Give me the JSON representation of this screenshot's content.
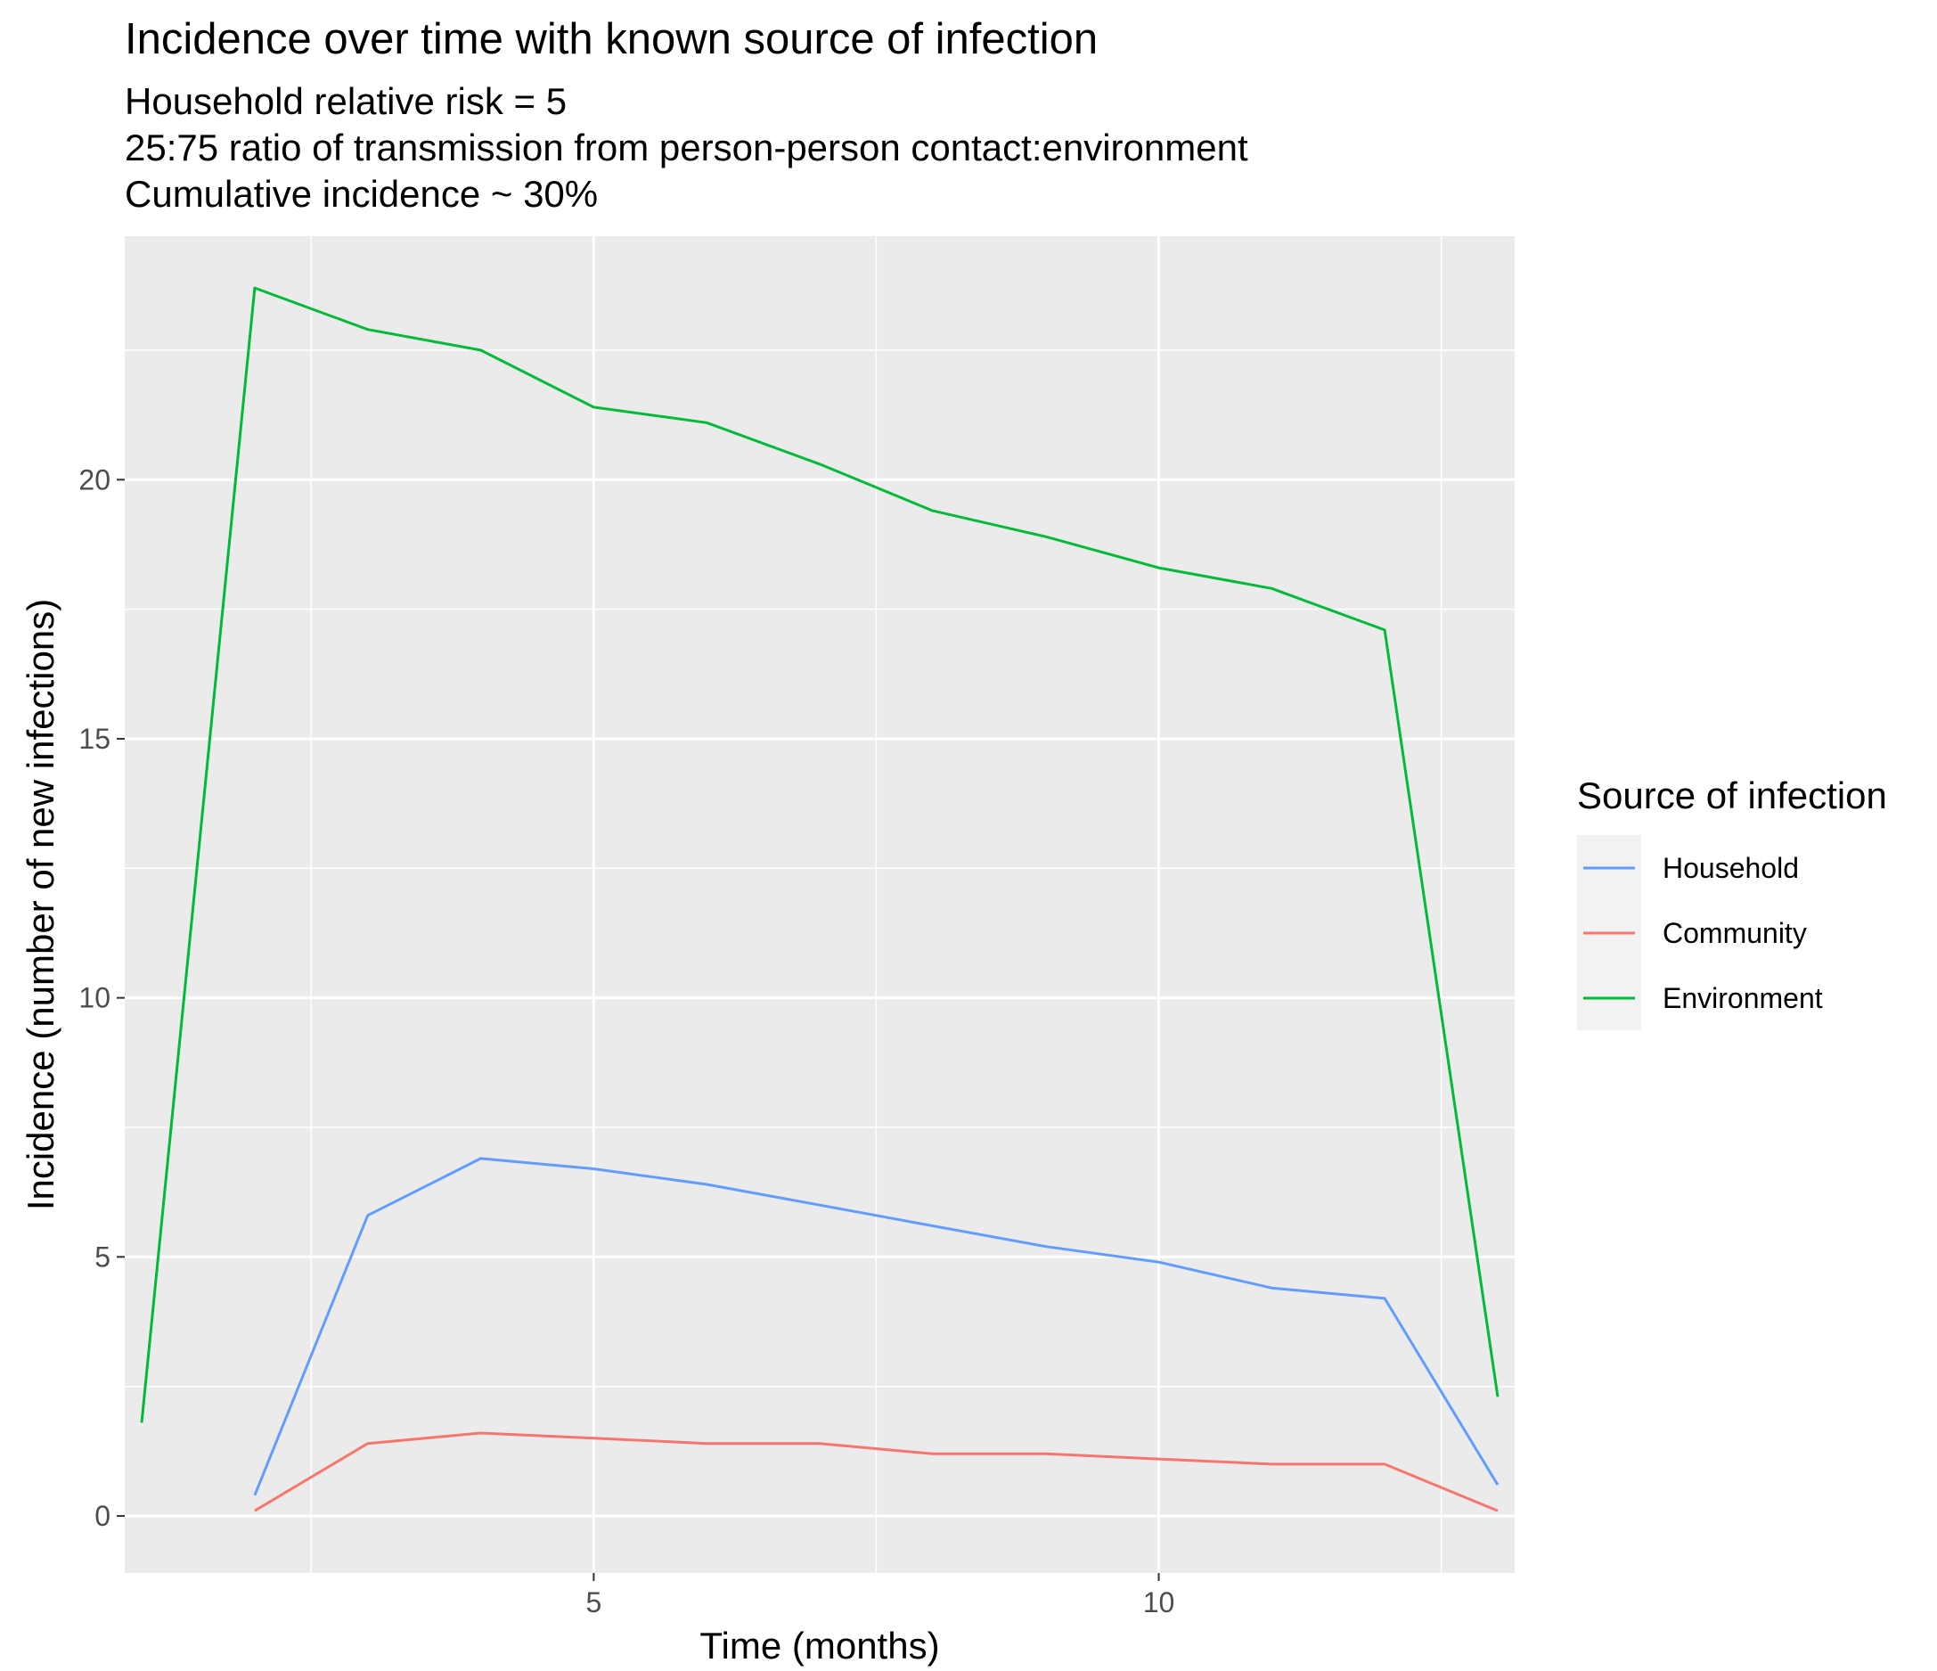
{
  "chart_data": {
    "type": "line",
    "title": "Incidence over time with known source of infection",
    "subtitle": [
      "Household relative risk = 5",
      "25:75 ratio of transmission from person-person contact:environment",
      "Cumulative incidence ~ 30%"
    ],
    "xlabel": "Time (months)",
    "ylabel": "Incidence (number of new infections)",
    "xlim": [
      0.85,
      13.15
    ],
    "ylim": [
      -1.1,
      24.7
    ],
    "x_ticks": [
      5,
      10
    ],
    "x_minor_ticks": [
      2.5,
      7.5,
      12.5
    ],
    "y_ticks": [
      0,
      5,
      10,
      15,
      20
    ],
    "y_minor_ticks": [
      2.5,
      7.5,
      12.5,
      17.5,
      22.5
    ],
    "grid": true,
    "background": "#ebebeb",
    "legend": {
      "title": "Source of infection",
      "position": "right"
    },
    "series": [
      {
        "name": "Household",
        "color": "#619cff",
        "x": [
          2,
          3,
          4,
          5,
          6,
          7,
          8,
          9,
          10,
          11,
          12,
          13
        ],
        "values": [
          0.4,
          5.8,
          6.9,
          6.7,
          6.4,
          6.0,
          5.6,
          5.2,
          4.9,
          4.4,
          4.2,
          0.6
        ]
      },
      {
        "name": "Community",
        "color": "#f8766d",
        "x": [
          2,
          3,
          4,
          5,
          6,
          7,
          8,
          9,
          10,
          11,
          12,
          13
        ],
        "values": [
          0.1,
          1.4,
          1.6,
          1.5,
          1.4,
          1.4,
          1.2,
          1.2,
          1.1,
          1.0,
          1.0,
          0.1
        ]
      },
      {
        "name": "Environment",
        "color": "#00ba38",
        "x": [
          1,
          2,
          3,
          4,
          5,
          6,
          7,
          8,
          9,
          10,
          11,
          12,
          13
        ],
        "values": [
          1.8,
          23.7,
          22.9,
          22.5,
          21.4,
          21.1,
          20.3,
          19.4,
          18.9,
          18.3,
          17.9,
          17.1,
          2.3
        ]
      }
    ]
  }
}
